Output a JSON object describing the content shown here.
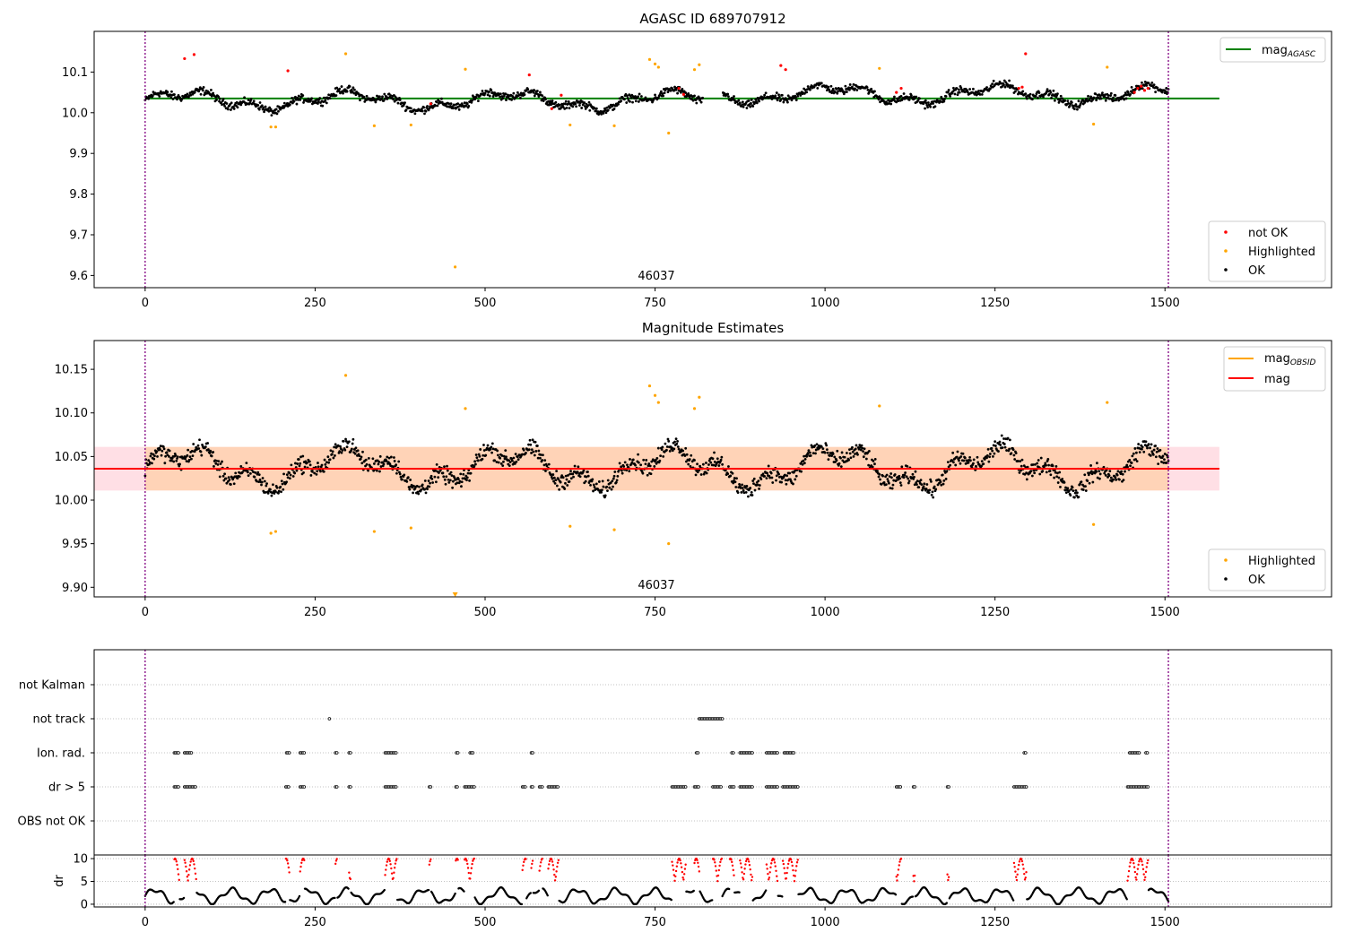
{
  "chart_data": [
    {
      "type": "scatter",
      "title": "AGASC ID 689707912",
      "xlabel": "",
      "ylabel": "",
      "xlim": [
        -75,
        1745
      ],
      "ylim": [
        9.57,
        10.2
      ],
      "xticks": [
        0,
        250,
        500,
        750,
        1000,
        1250,
        1500
      ],
      "yticks": [
        9.6,
        9.7,
        9.8,
        9.9,
        10.0,
        10.1
      ],
      "ytick_labels": [
        "9.6",
        "9.7",
        "9.8",
        "9.9",
        "10.0",
        "10.1"
      ],
      "vlines": [
        0,
        1505
      ],
      "annotation": {
        "text": "46037",
        "x": 752
      },
      "reference_line": {
        "name": "mag",
        "name_sub": "AGASC",
        "value": 10.035,
        "x_range": [
          0,
          1580
        ],
        "color": "#008000"
      },
      "ok_noise": 0.02,
      "segments": [
        {
          "x": [
            0,
            820
          ],
          "mean": 10.03
        },
        {
          "x": [
            850,
            1505
          ],
          "mean": 10.045
        }
      ],
      "series": [
        {
          "name": "not OK",
          "color": "#ff0000",
          "x": [
            58,
            72,
            210,
            420,
            565,
            598,
            612,
            785,
            792,
            935,
            942,
            1105,
            1112,
            1285,
            1290,
            1295,
            1455,
            1460,
            1465,
            1470,
            1475
          ],
          "y": [
            10.133,
            10.143,
            10.103,
            10.022,
            10.093,
            10.01,
            10.043,
            10.06,
            10.045,
            10.116,
            10.106,
            10.05,
            10.06,
            10.06,
            10.063,
            10.145,
            10.05,
            10.06,
            10.065,
            10.055,
            10.06
          ]
        },
        {
          "name": "Highlighted",
          "color": "#ffa500",
          "x": [
            185,
            192,
            295,
            337,
            391,
            456,
            471,
            625,
            690,
            742,
            750,
            755,
            770,
            808,
            815,
            1080,
            1395,
            1415
          ],
          "y": [
            9.965,
            9.965,
            10.145,
            9.968,
            9.97,
            9.621,
            10.107,
            9.97,
            9.968,
            10.131,
            10.12,
            10.112,
            9.95,
            10.106,
            10.118,
            10.109,
            9.972,
            10.112
          ]
        },
        {
          "name": "OK",
          "color": "#000000"
        }
      ],
      "legend": {
        "position": "lower right",
        "entries": [
          "not OK",
          "Highlighted",
          "OK"
        ]
      },
      "line_legend": {
        "position": "upper right"
      }
    },
    {
      "type": "scatter",
      "title": "Magnitude Estimates",
      "xlabel": "",
      "ylabel": "",
      "xlim": [
        -75,
        1745
      ],
      "ylim": [
        9.889,
        10.183
      ],
      "xticks": [
        0,
        250,
        500,
        750,
        1000,
        1250,
        1500
      ],
      "yticks": [
        9.9,
        9.95,
        10.0,
        10.05,
        10.1,
        10.15
      ],
      "ytick_labels": [
        "9.90",
        "9.95",
        "10.00",
        "10.05",
        "10.10",
        "10.15"
      ],
      "vlines": [
        0,
        1505
      ],
      "annotation": {
        "text": "46037",
        "x": 752
      },
      "lines": [
        {
          "name": "mag",
          "name_sub": "OBSID",
          "value": 10.036,
          "x_range": [
            0,
            1505
          ],
          "color": "#ffa500"
        },
        {
          "name": "mag",
          "name_sub": "",
          "value": 10.036,
          "x_range": [
            -75,
            1580
          ],
          "color": "#ff0000"
        }
      ],
      "bands": [
        {
          "low": 10.011,
          "high": 10.061,
          "x_range": [
            -75,
            1580
          ],
          "color": "#ffc0cb",
          "opacity": 0.5
        },
        {
          "low": 10.011,
          "high": 10.061,
          "x_range": [
            0,
            1505
          ],
          "color": "#ffa500",
          "opacity": 0.2
        }
      ],
      "ok_noise": 0.02,
      "segments": [
        {
          "x": [
            0,
            1505
          ],
          "mean": 10.037
        }
      ],
      "series": [
        {
          "name": "Highlighted",
          "color": "#ffa500",
          "x": [
            185,
            192,
            295,
            337,
            391,
            471,
            625,
            690,
            742,
            750,
            755,
            770,
            808,
            815,
            1080,
            1395,
            1415
          ],
          "y": [
            9.962,
            9.964,
            10.143,
            9.964,
            9.968,
            10.105,
            9.97,
            9.966,
            10.131,
            10.12,
            10.112,
            9.95,
            10.105,
            10.118,
            10.108,
            9.972,
            10.112
          ]
        },
        {
          "name": "OK",
          "color": "#000000"
        }
      ],
      "offscale_marker": {
        "x": 456,
        "y": 9.891,
        "color": "#ffa500"
      },
      "legend": {
        "position": "lower right",
        "entries": [
          "Highlighted",
          "OK"
        ]
      },
      "line_legend": {
        "position": "upper right"
      }
    },
    {
      "type": "scatter",
      "title": "",
      "xlabel": "",
      "ylabel": "",
      "xlim": [
        -75,
        1745
      ],
      "flag_labels": [
        "not Kalman",
        "not track",
        "Ion. rad.",
        "dr > 5",
        "OBS not OK"
      ],
      "flags": {
        "not track": [
          {
            "start": 271,
            "end": 271
          },
          {
            "start": 815,
            "end": 850
          }
        ],
        "Ion. rad.": [
          {
            "start": 43,
            "end": 50
          },
          {
            "start": 58,
            "end": 68
          },
          {
            "start": 208,
            "end": 212
          },
          {
            "start": 228,
            "end": 234
          },
          {
            "start": 280,
            "end": 282
          },
          {
            "start": 300,
            "end": 302
          },
          {
            "start": 353,
            "end": 370
          },
          {
            "start": 458,
            "end": 460
          },
          {
            "start": 478,
            "end": 482
          },
          {
            "start": 568,
            "end": 570
          },
          {
            "start": 811,
            "end": 813
          },
          {
            "start": 863,
            "end": 865
          },
          {
            "start": 875,
            "end": 893
          },
          {
            "start": 914,
            "end": 930
          },
          {
            "start": 940,
            "end": 955
          },
          {
            "start": 1293,
            "end": 1296
          },
          {
            "start": 1448,
            "end": 1462
          },
          {
            "start": 1472,
            "end": 1475
          }
        ],
        "dr > 5": [
          {
            "start": 43,
            "end": 50
          },
          {
            "start": 58,
            "end": 75
          },
          {
            "start": 207,
            "end": 212
          },
          {
            "start": 228,
            "end": 234
          },
          {
            "start": 280,
            "end": 282
          },
          {
            "start": 300,
            "end": 302
          },
          {
            "start": 353,
            "end": 370
          },
          {
            "start": 418,
            "end": 420
          },
          {
            "start": 457,
            "end": 460
          },
          {
            "start": 470,
            "end": 484
          },
          {
            "start": 555,
            "end": 560
          },
          {
            "start": 568,
            "end": 570
          },
          {
            "start": 580,
            "end": 584
          },
          {
            "start": 593,
            "end": 608
          },
          {
            "start": 775,
            "end": 795
          },
          {
            "start": 808,
            "end": 815
          },
          {
            "start": 835,
            "end": 848
          },
          {
            "start": 860,
            "end": 866
          },
          {
            "start": 875,
            "end": 893
          },
          {
            "start": 914,
            "end": 930
          },
          {
            "start": 938,
            "end": 960
          },
          {
            "start": 1105,
            "end": 1112
          },
          {
            "start": 1130,
            "end": 1132
          },
          {
            "start": 1180,
            "end": 1182
          },
          {
            "start": 1278,
            "end": 1296
          },
          {
            "start": 1445,
            "end": 1475
          }
        ]
      },
      "legend": {
        "position": "none"
      }
    },
    {
      "type": "scatter",
      "title": "",
      "xlabel": "",
      "ylabel": "dr",
      "xlim": [
        -75,
        1745
      ],
      "ylim": [
        -0.6,
        10.8
      ],
      "xticks": [
        0,
        250,
        500,
        750,
        1000,
        1250,
        1500
      ],
      "yticks": [
        0,
        5,
        10
      ],
      "ytick_labels": [
        "0",
        "5",
        "10"
      ],
      "threshold": 5,
      "clip": 10,
      "vlines": [
        0,
        1505
      ],
      "series": [
        {
          "name": "dr",
          "color": "#000000",
          "above_threshold_color": "#ff0000"
        }
      ],
      "legend": {
        "position": "none"
      }
    }
  ]
}
